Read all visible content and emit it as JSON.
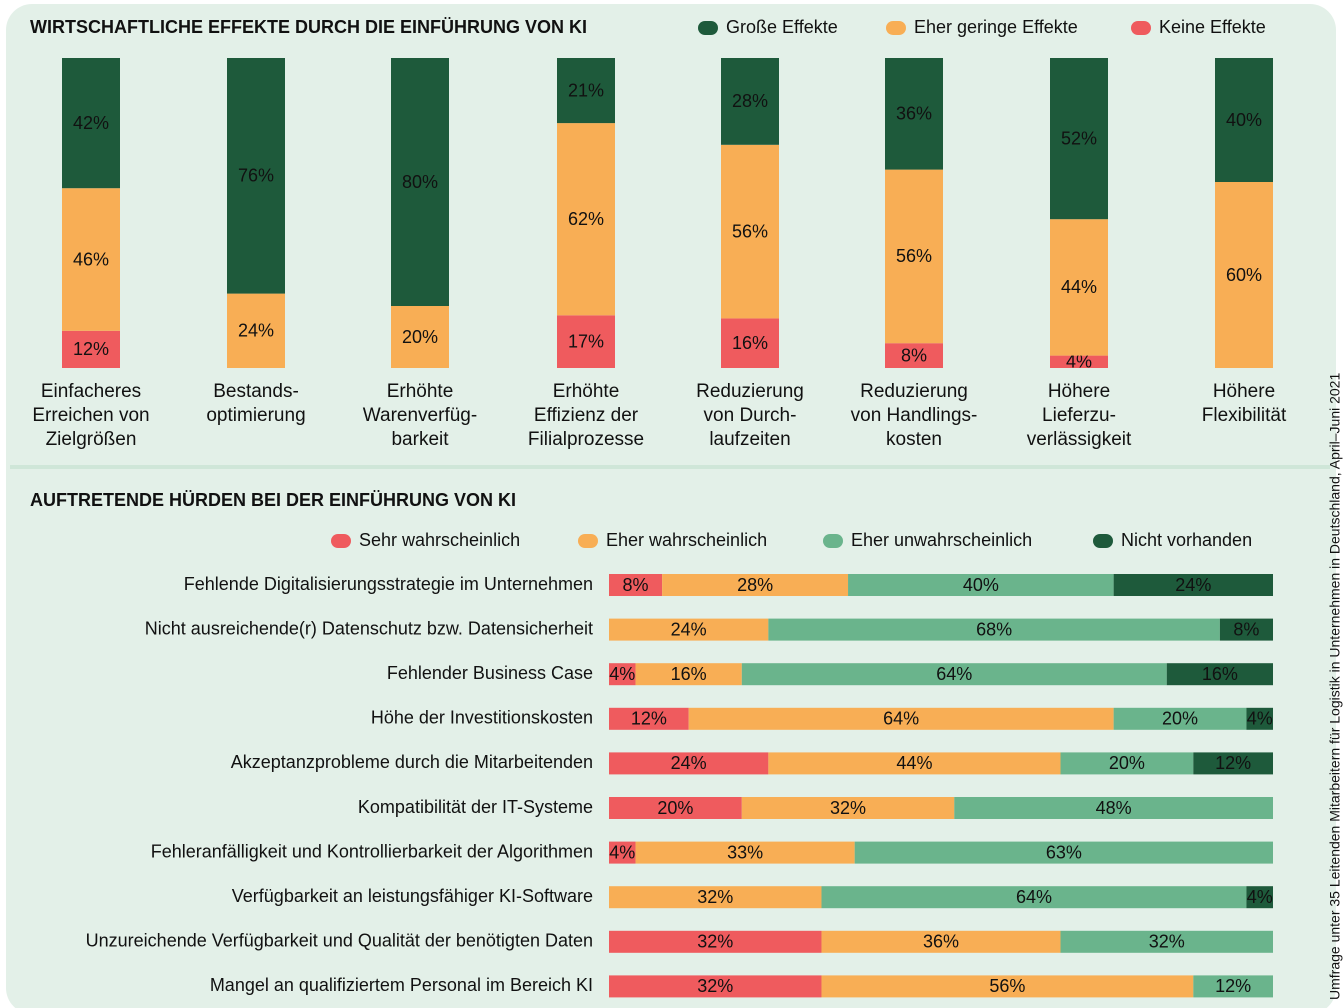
{
  "chart_data": [
    {
      "type": "stacked_bar",
      "title": "WIRTSCHAFTLICHE EFFEKTE DURCH DIE EINFÜHRUNG VON KI",
      "categories": [
        "Einfacheres\nErreichen von\nZielgrößen",
        "Bestands-\noptimierung",
        "Erhöhte\nWarenverfüg-\nbarkeit",
        "Erhöhte\nEffizienz der\nFilialprozesse",
        "Reduzierung\nvon Durch-\nlaufzeiten",
        "Reduzierung\nvon Handlings-\nkosten",
        "Höhere\nLieferzu-\nverlässigkeit",
        "Höhere\nFlexibilität"
      ],
      "series": [
        {
          "name": "Große Effekte",
          "color": "#1e5a3b",
          "values": [
            42,
            76,
            80,
            21,
            28,
            36,
            52,
            40
          ],
          "value_labels": [
            "42%",
            "76%",
            "80%",
            "21%",
            "28%",
            "36%",
            "52%",
            "40%"
          ]
        },
        {
          "name": "Eher geringe Effekte",
          "color": "#f8ae55",
          "values": [
            46,
            24,
            20,
            62,
            56,
            56,
            44,
            60
          ],
          "value_labels": [
            "46%",
            "24%",
            "20%",
            "62%",
            "56%",
            "56%",
            "44%",
            "60%"
          ]
        },
        {
          "name": "Keine Effekte",
          "color": "#ef5b5e",
          "values": [
            12,
            0,
            0,
            17,
            16,
            8,
            4,
            0
          ],
          "value_labels": [
            "12%",
            null,
            null,
            "17%",
            "16%",
            "8%",
            "4%",
            null
          ]
        }
      ]
    },
    {
      "type": "stacked_barh",
      "title": "AUFTRETENDE HÜRDEN BEI DER EINFÜHRUNG VON KI",
      "categories": [
        "Fehlende Digitalisierungsstrategie im Unternehmen",
        "Nicht ausreichende(r) Datenschutz bzw. Datensicherheit",
        "Fehlender Business Case",
        "Höhe der Investitionskosten",
        "Akzeptanzprobleme durch die Mitarbeitenden",
        "Kompatibilität der IT-Systeme",
        "Fehleranfälligkeit und Kontrollierbarkeit der Algorithmen",
        "Verfügbarkeit an leistungsfähiger KI-Software",
        "Unzureichende Verfügbarkeit und Qualität der benötigten Daten",
        "Mangel an qualifiziertem Personal im Bereich KI"
      ],
      "series": [
        {
          "name": "Sehr wahrscheinlich",
          "color": "#ef5b5e",
          "values": [
            8,
            0,
            4,
            12,
            24,
            20,
            4,
            0,
            32,
            32
          ],
          "value_labels": [
            "8%",
            null,
            "4%",
            "12%",
            "24%",
            "20%",
            "4%",
            null,
            "32%",
            "32%"
          ]
        },
        {
          "name": "Eher wahrscheinlich",
          "color": "#f8ae55",
          "values": [
            28,
            24,
            16,
            64,
            44,
            32,
            33,
            32,
            36,
            56
          ],
          "value_labels": [
            "28%",
            "24%",
            "16%",
            "64%",
            "44%",
            "32%",
            "33%",
            "32%",
            "36%",
            "56%"
          ]
        },
        {
          "name": "Eher unwahrscheinlich",
          "color": "#6ab48c",
          "values": [
            40,
            68,
            64,
            20,
            20,
            48,
            63,
            64,
            32,
            12
          ],
          "value_labels": [
            "40%",
            "68%",
            "64%",
            "20%",
            "20%",
            "48%",
            "63%",
            "64%",
            "32%",
            "12%"
          ]
        },
        {
          "name": "Nicht vorhanden",
          "color": "#1e5a3b",
          "values": [
            24,
            8,
            16,
            4,
            12,
            0,
            0,
            4,
            0,
            0
          ],
          "value_labels": [
            "24%",
            "8%",
            "16%",
            "4%",
            "12%",
            null,
            null,
            "4%",
            null,
            null
          ]
        }
      ]
    }
  ],
  "source": "Umfrage unter 35 Leitenden Mitarbeitern für Logistik in Unternehmen in Deutschland, April–Juni 2021"
}
